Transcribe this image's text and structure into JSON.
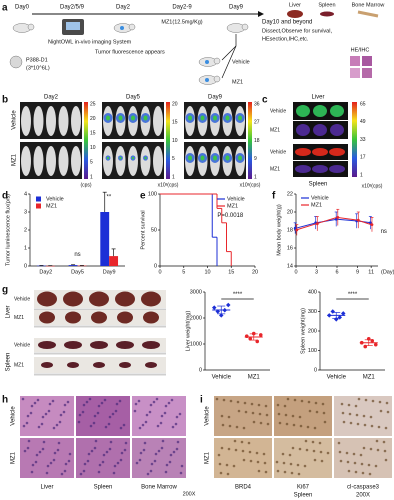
{
  "panel_labels": [
    "a",
    "b",
    "c",
    "d",
    "e",
    "f",
    "g",
    "h",
    "i"
  ],
  "panel_a": {
    "steps": [
      "Day0",
      "Day2/5/9",
      "Day2",
      "Day2-9",
      "Day9",
      "Day10 and beyond"
    ],
    "imaging": "NightOWL in-vivo imaging System",
    "appears": "Tumor fluorescence appears",
    "dose": "MZ1(12.5mg/Kg)",
    "cells": "P388-D1",
    "cell_count": "(3*10^6L)",
    "vehicle": "Vehicle",
    "mz1": "MZ1",
    "end": [
      "Dissect,Observe for survival,",
      "HEsection,IHC,etc."
    ],
    "organs": [
      "Liver",
      "Spleen",
      "Bone Marrow"
    ],
    "stain": "HE/IHC"
  },
  "panel_b": {
    "days": [
      "Day2",
      "Day5",
      "Day9"
    ],
    "rows": [
      "Vehicle",
      "MZ1"
    ],
    "colorbars": [
      {
        "ticks": [
          "25",
          "20",
          "15",
          "10",
          "5",
          "1"
        ],
        "unit": "(cps)"
      },
      {
        "ticks": [
          "20",
          "15",
          "10",
          "5",
          "1"
        ],
        "unit": "x10³(cps)"
      },
      {
        "ticks": [
          "36",
          "27",
          "18",
          "9",
          "1"
        ],
        "unit": "x10³(cps)"
      }
    ]
  },
  "panel_c": {
    "organs": [
      "Liver",
      "Spleen"
    ],
    "rows": [
      "Vehicle",
      "MZ1",
      "Vehicle",
      "MZ1"
    ],
    "colorbar": {
      "ticks": [
        "65",
        "49",
        "33",
        "17",
        "1"
      ],
      "unit": "x10³(cps)"
    }
  },
  "panel_g": {
    "organs": [
      "Liver",
      "Spleen"
    ],
    "rows": [
      "Vehicle",
      "MZ1",
      "Vehicle",
      "MZ1"
    ]
  },
  "panel_h": {
    "rows": [
      "Vehicle",
      "MZ1"
    ],
    "columns": [
      "Liver",
      "Spleen",
      "Bone Marrow"
    ],
    "magnification": "200X"
  },
  "panel_i": {
    "rows": [
      "Vehicle",
      "MZ1"
    ],
    "columns": [
      "BRD4",
      "Ki67",
      "cl-caspase3"
    ],
    "tissue": "Spleen",
    "magnification": "200X"
  },
  "chart_data": [
    {
      "type": "bar",
      "y_label": "Tumor luminescence flux(p/s)",
      "categories": [
        "Day2",
        "Day5",
        "Day9"
      ],
      "series": [
        {
          "name": "Vehicle",
          "color": "#1c2fd6",
          "values": [
            0.02,
            0.05,
            3.0
          ],
          "errors": [
            0.01,
            0.02,
            1.1
          ]
        },
        {
          "name": "MZ1",
          "color": "#e8262b",
          "values": [
            0.01,
            0.02,
            0.55
          ],
          "errors": [
            0.01,
            0.01,
            0.4
          ]
        }
      ],
      "ylim": [
        0,
        4
      ],
      "yticks": [
        0,
        1,
        2,
        3,
        4
      ],
      "annotations": [
        "ns",
        "**"
      ]
    },
    {
      "type": "line",
      "step": true,
      "y_label": "Percent survival",
      "series": [
        {
          "name": "Vehicle",
          "color": "#1c2fd6",
          "x": [
            0,
            11,
            12
          ],
          "values": [
            100,
            40,
            0
          ]
        },
        {
          "name": "MZ1",
          "color": "#e8262b",
          "x": [
            0,
            12,
            13,
            14,
            15
          ],
          "values": [
            100,
            80,
            60,
            20,
            0
          ]
        }
      ],
      "xlim": [
        0,
        20
      ],
      "xticks": [
        0,
        5,
        10,
        15,
        20
      ],
      "ylim": [
        0,
        100
      ],
      "yticks": [
        0,
        50,
        100
      ],
      "annotations": [
        "P=0.0018"
      ]
    },
    {
      "type": "line",
      "y_label": "Mean body weight(g)",
      "x_label": "(Day)",
      "x": [
        0,
        3,
        6,
        9,
        11
      ],
      "series": [
        {
          "name": "Vehicle",
          "color": "#1c2fd6",
          "values": [
            18.2,
            18.8,
            19.2,
            19.0,
            18.8
          ],
          "errors": [
            0.6,
            0.7,
            0.8,
            0.8,
            0.7
          ]
        },
        {
          "name": "MZ1",
          "color": "#e8262b",
          "values": [
            18.0,
            18.7,
            19.4,
            19.1,
            18.6
          ],
          "errors": [
            0.6,
            0.8,
            0.9,
            0.9,
            0.8
          ]
        }
      ],
      "xlim": [
        0,
        12
      ],
      "xticks": [
        0,
        3,
        6,
        9,
        11
      ],
      "ylim": [
        14,
        22
      ],
      "yticks": [
        14,
        16,
        18,
        20,
        22
      ],
      "annotations": [
        "ns"
      ]
    },
    {
      "type": "scatter",
      "y_label": "Liver weight(mg)",
      "categories": [
        "Vehicle",
        "MZ1"
      ],
      "colors": [
        "#1c2fd6",
        "#e8262b"
      ],
      "values": [
        [
          2400,
          2250,
          2100,
          2300,
          2500
        ],
        [
          1300,
          1200,
          1400,
          1100,
          1350
        ]
      ],
      "means": [
        2310,
        1270
      ],
      "errors": [
        150,
        120
      ],
      "ylim": [
        0,
        3000
      ],
      "yticks": [
        0,
        1000,
        2000,
        3000
      ],
      "annotations": [
        "****"
      ]
    },
    {
      "type": "scatter",
      "y_label": "Spleen weight(mg)",
      "categories": [
        "Vehicle",
        "MZ1"
      ],
      "colors": [
        "#1c2fd6",
        "#e8262b"
      ],
      "values": [
        [
          280,
          300,
          260,
          270,
          290
        ],
        [
          140,
          120,
          160,
          150,
          130
        ]
      ],
      "means": [
        280,
        140
      ],
      "errors": [
        15,
        15
      ],
      "ylim": [
        0,
        400
      ],
      "yticks": [
        0,
        100,
        200,
        300,
        400
      ],
      "annotations": [
        "****"
      ]
    }
  ]
}
